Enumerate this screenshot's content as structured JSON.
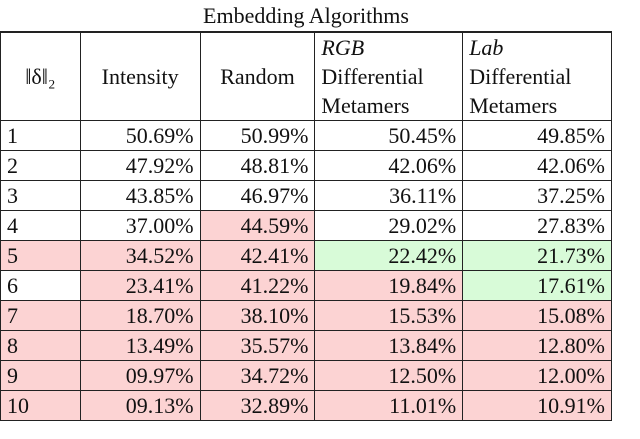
{
  "table": {
    "title": "Embedding Algorithms",
    "header": [
      [
        "‖δ‖₂"
      ],
      [
        "Intensity"
      ],
      [
        "Random"
      ],
      [
        "RGB",
        "Differential",
        "Metamers"
      ],
      [
        "Lab",
        "Differential",
        "Metamers"
      ]
    ],
    "rows": [
      [
        "1",
        "50.69%",
        "50.99%",
        "50.45%",
        "49.85%"
      ],
      [
        "2",
        "47.92%",
        "48.81%",
        "42.06%",
        "42.06%"
      ],
      [
        "3",
        "43.85%",
        "46.97%",
        "36.11%",
        "37.25%"
      ],
      [
        "4",
        "37.00%",
        "44.59%",
        "29.02%",
        "27.83%"
      ],
      [
        "5",
        "34.52%",
        "42.41%",
        "22.42%",
        "21.73%"
      ],
      [
        "6",
        "23.41%",
        "41.22%",
        "19.84%",
        "17.61%"
      ],
      [
        "7",
        "18.70%",
        "38.10%",
        "15.53%",
        "15.08%"
      ],
      [
        "8",
        "13.49%",
        "35.57%",
        "13.84%",
        "12.80%"
      ],
      [
        "9",
        "09.97%",
        "34.72%",
        "12.50%",
        "12.00%"
      ],
      [
        "10",
        "09.13%",
        "32.89%",
        "11.01%",
        "10.91%"
      ]
    ],
    "cell_colors": [
      [
        "",
        "",
        "",
        "",
        ""
      ],
      [
        "",
        "",
        "",
        "",
        ""
      ],
      [
        "",
        "",
        "",
        "",
        ""
      ],
      [
        "",
        "",
        "#fcd3d3",
        "",
        ""
      ],
      [
        "#fcd3d3",
        "#fcd3d3",
        "#fcd3d3",
        "#d8fbd8",
        "#d8fbd8"
      ],
      [
        "",
        "#fcd3d3",
        "#fcd3d3",
        "#fcd3d3",
        "#d8fbd8"
      ],
      [
        "#fcd3d3",
        "#fcd3d3",
        "#fcd3d3",
        "#fcd3d3",
        "#fcd3d3"
      ],
      [
        "#fcd3d3",
        "#fcd3d3",
        "#fcd3d3",
        "#fcd3d3",
        "#fcd3d3"
      ],
      [
        "#fcd3d3",
        "#fcd3d3",
        "#fcd3d3",
        "#fcd3d3",
        "#fcd3d3"
      ],
      [
        "#fcd3d3",
        "#fcd3d3",
        "#fcd3d3",
        "#fcd3d3",
        "#fcd3d3"
      ]
    ]
  }
}
